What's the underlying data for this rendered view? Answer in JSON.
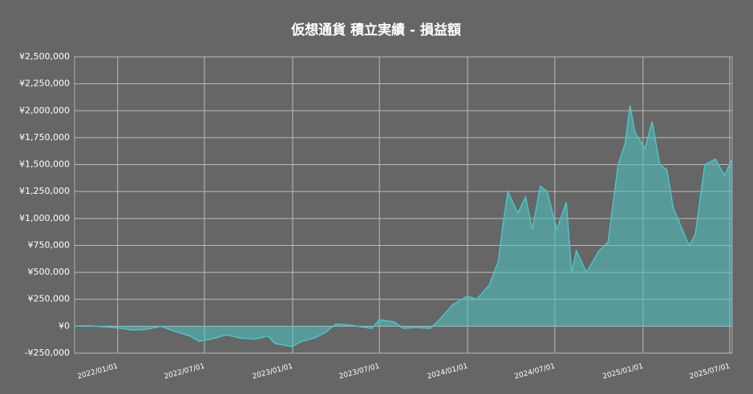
{
  "chart_data": {
    "type": "area",
    "title": "仮想通貨 積立実績 - 損益額",
    "x": [
      "2021/10/03",
      "2021/11/01",
      "2021/12/01",
      "2022/01/01",
      "2022/02/01",
      "2022/03/01",
      "2022/04/01",
      "2022/05/01",
      "2022/06/01",
      "2022/06/20",
      "2022/07/15",
      "2022/08/15",
      "2022/09/15",
      "2022/10/15",
      "2022/11/10",
      "2022/11/25",
      "2022/12/31",
      "2023/01/20",
      "2023/02/15",
      "2023/03/10",
      "2023/04/01",
      "2023/05/01",
      "2023/06/15",
      "2023/07/01",
      "2023/08/01",
      "2023/08/20",
      "2023/09/15",
      "2023/10/15",
      "2023/11/01",
      "2023/12/01",
      "2024/01/01",
      "2024/01/20",
      "2024/02/15",
      "2024/03/05",
      "2024/03/15",
      "2024/03/25",
      "2024/04/15",
      "2024/05/01",
      "2024/05/15",
      "2024/06/01",
      "2024/06/15",
      "2024/07/05",
      "2024/07/25",
      "2024/08/05",
      "2024/08/15",
      "2024/09/05",
      "2024/10/01",
      "2024/10/20",
      "2024/11/10",
      "2024/11/25",
      "2024/12/05",
      "2024/12/15",
      "2025/01/05",
      "2025/01/20",
      "2025/02/05",
      "2025/02/20",
      "2025/03/05",
      "2025/04/07",
      "2025/04/20",
      "2025/05/10",
      "2025/06/01",
      "2025/06/20",
      "2025/07/06"
    ],
    "series": [
      {
        "color": "#4cc4c4",
        "values": [
          0,
          5000,
          -5000,
          -15000,
          -35000,
          -30000,
          0,
          -50000,
          -90000,
          -140000,
          -120000,
          -80000,
          -110000,
          -120000,
          -90000,
          -160000,
          -190000,
          -140000,
          -110000,
          -60000,
          20000,
          10000,
          -20000,
          60000,
          40000,
          -20000,
          -10000,
          -20000,
          50000,
          200000,
          280000,
          250000,
          380000,
          600000,
          950000,
          1250000,
          1050000,
          1200000,
          900000,
          1300000,
          1250000,
          900000,
          1150000,
          500000,
          700000,
          500000,
          700000,
          780000,
          1500000,
          1700000,
          2050000,
          1800000,
          1650000,
          1900000,
          1500000,
          1450000,
          1100000,
          750000,
          850000,
          1500000,
          1550000,
          1400000,
          1550000
        ]
      }
    ],
    "xlim": [
      "2021/10/03",
      "2025/07/06"
    ],
    "xticks": [
      "2022/01/01",
      "2022/07/01",
      "2023/01/01",
      "2023/07/01",
      "2024/01/01",
      "2024/07/01",
      "2025/01/01",
      "2025/07/01"
    ],
    "ylim": [
      -250000,
      2500000
    ],
    "yticks": [
      {
        "value": -250000,
        "label": "-¥250,000"
      },
      {
        "value": 0,
        "label": "¥0"
      },
      {
        "value": 250000,
        "label": "¥250,000"
      },
      {
        "value": 500000,
        "label": "¥500,000"
      },
      {
        "value": 750000,
        "label": "¥750,000"
      },
      {
        "value": 1000000,
        "label": "¥1,000,000"
      },
      {
        "value": 1250000,
        "label": "¥1,250,000"
      },
      {
        "value": 1500000,
        "label": "¥1,500,000"
      },
      {
        "value": 1750000,
        "label": "¥1,750,000"
      },
      {
        "value": 2000000,
        "label": "¥2,000,000"
      },
      {
        "value": 2250000,
        "label": "¥2,250,000"
      },
      {
        "value": 2500000,
        "label": "¥2,500,000"
      }
    ],
    "grid": true
  }
}
